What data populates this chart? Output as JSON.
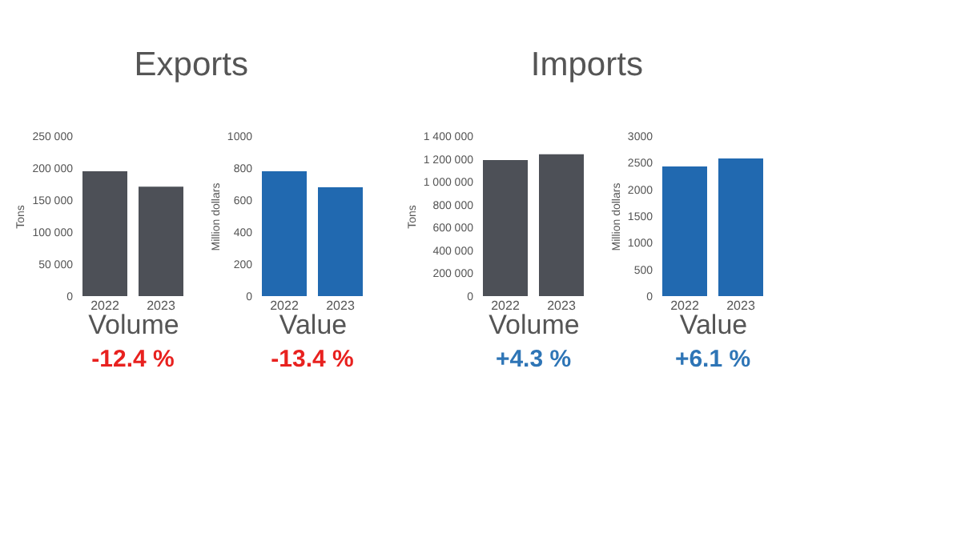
{
  "chart_data": [
    {
      "type": "bar",
      "title": "Exports",
      "categories": [
        "2022",
        "2023"
      ],
      "values": [
        195000,
        171000
      ],
      "color": "#4d5057",
      "ylabel": "Tons",
      "xlabel": "Volume",
      "ylim": [
        0,
        250000
      ],
      "yticks": [
        0,
        {
          "value": 50000,
          "label": "50 000"
        },
        {
          "value": 100000,
          "label": "100 000"
        },
        {
          "value": 150000,
          "label": "150 000"
        },
        {
          "value": 200000,
          "label": "200 000"
        },
        {
          "value": 250000,
          "label": "250 000"
        }
      ],
      "annotations": [
        "-12.4 %"
      ],
      "grid": false
    },
    {
      "type": "bar",
      "categories": [
        "2022",
        "2023"
      ],
      "values": [
        780,
        680
      ],
      "color": "#2169b0",
      "ylabel": "Million dollars",
      "xlabel": "Value",
      "ylim": [
        0,
        1000
      ],
      "yticks": [
        0,
        200,
        400,
        600,
        800,
        1000
      ],
      "annotations": [
        "-13.4 %"
      ],
      "grid": false
    },
    {
      "type": "bar",
      "title": "Imports",
      "categories": [
        "2022",
        "2023"
      ],
      "values": [
        1190000,
        1240000
      ],
      "color": "#4d5057",
      "ylabel": "Tons",
      "xlabel": "Volume",
      "ylim": [
        0,
        1400000
      ],
      "yticks": [
        0,
        {
          "value": 200000,
          "label": "200 000"
        },
        {
          "value": 400000,
          "label": "400 000"
        },
        {
          "value": 600000,
          "label": "600 000"
        },
        {
          "value": 800000,
          "label": "800 000"
        },
        {
          "value": 1000000,
          "label": "1 000 000"
        },
        {
          "value": 1200000,
          "label": "1 200 000"
        },
        {
          "value": 1400000,
          "label": "1 400 000"
        }
      ],
      "annotations": [
        "+4.3 %"
      ],
      "grid": false
    },
    {
      "type": "bar",
      "categories": [
        "2022",
        "2023"
      ],
      "values": [
        2430,
        2580
      ],
      "color": "#2169b0",
      "ylabel": "Million dollars",
      "xlabel": "Value",
      "ylim": [
        0,
        3000
      ],
      "yticks": [
        0,
        500,
        1000,
        1500,
        2000,
        2500,
        3000
      ],
      "annotations": [
        "+6.1 %"
      ],
      "grid": false
    }
  ]
}
